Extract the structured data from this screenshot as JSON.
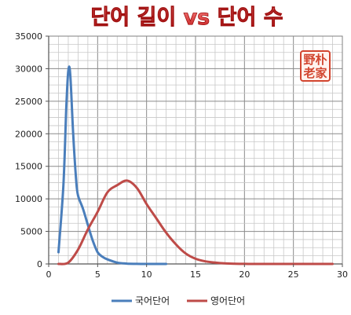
{
  "chart_data": {
    "type": "line",
    "title": "단어 길이 vs 단어 수",
    "xlim": [
      0,
      30
    ],
    "ylim": [
      0,
      35000
    ],
    "x_ticks": [
      0,
      5,
      10,
      15,
      20,
      25,
      30
    ],
    "y_ticks": [
      0,
      5000,
      10000,
      15000,
      20000,
      25000,
      30000,
      35000
    ],
    "grid": true,
    "legend_position": "bottom",
    "series": [
      {
        "name": "국어단어",
        "color": "#4a7ebb",
        "points": [
          [
            1,
            1800
          ],
          [
            1.5,
            12000
          ],
          [
            1.8,
            24000
          ],
          [
            2,
            29600
          ],
          [
            2.2,
            29200
          ],
          [
            2.5,
            20000
          ],
          [
            2.8,
            13000
          ],
          [
            3,
            10500
          ],
          [
            3.5,
            8500
          ],
          [
            4,
            6000
          ],
          [
            4.5,
            3600
          ],
          [
            5,
            1800
          ],
          [
            5.5,
            1100
          ],
          [
            6,
            700
          ],
          [
            7,
            200
          ],
          [
            8,
            50
          ],
          [
            9,
            10
          ],
          [
            10,
            0
          ],
          [
            11,
            0
          ],
          [
            12,
            0
          ]
        ]
      },
      {
        "name": "영어단어",
        "color": "#be4b48",
        "points": [
          [
            1,
            0
          ],
          [
            2,
            200
          ],
          [
            3,
            2200
          ],
          [
            4,
            5300
          ],
          [
            5,
            8000
          ],
          [
            6,
            11000
          ],
          [
            7,
            12100
          ],
          [
            8,
            12800
          ],
          [
            9,
            11700
          ],
          [
            10,
            9200
          ],
          [
            11,
            7000
          ],
          [
            12,
            4800
          ],
          [
            13,
            3000
          ],
          [
            14,
            1600
          ],
          [
            15,
            800
          ],
          [
            16,
            400
          ],
          [
            17,
            200
          ],
          [
            18,
            80
          ],
          [
            19,
            30
          ],
          [
            20,
            10
          ],
          [
            21,
            0
          ],
          [
            22,
            0
          ],
          [
            25,
            0
          ],
          [
            28,
            0
          ],
          [
            29,
            0
          ]
        ]
      }
    ]
  },
  "seal": {
    "lines": [
      "野朴",
      "老家"
    ],
    "color": "#d2452f"
  }
}
